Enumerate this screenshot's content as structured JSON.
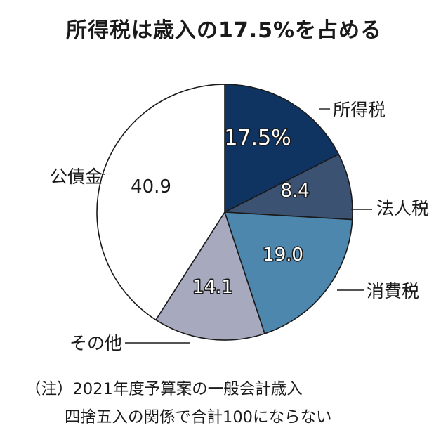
{
  "title": "所得税は歳入の17.5%を占める",
  "chart_data": {
    "type": "pie",
    "title": "所得税は歳入の17.5%を占める",
    "slices": [
      {
        "label": "所得税",
        "value": 17.5,
        "value_label": "17.5%",
        "color": "#0f3462"
      },
      {
        "label": "法人税",
        "value": 8.4,
        "value_label": "8.4",
        "color": "#3c5272"
      },
      {
        "label": "消費税",
        "value": 19.0,
        "value_label": "19.0",
        "color": "#4d87ad"
      },
      {
        "label": "その他",
        "value": 14.1,
        "value_label": "14.1",
        "color": "#a7aabf"
      },
      {
        "label": "公債金",
        "value": 40.9,
        "value_label": "40.9",
        "color": "#ffffff"
      }
    ]
  },
  "notes": {
    "line1": "（注）2021年度予算案の一般会計歳入",
    "line2": "四捨五入の関係で合計100にならない"
  }
}
